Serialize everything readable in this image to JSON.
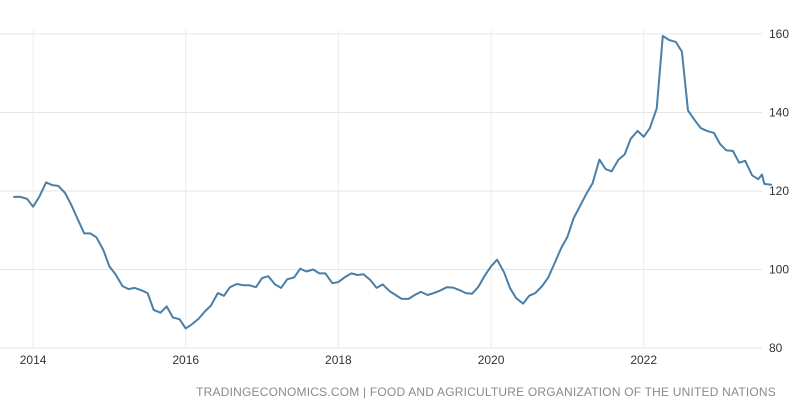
{
  "source_label": "TRADINGECONOMICS.COM | FOOD AND AGRICULTURE ORGANIZATION OF THE UNITED NATIONS",
  "chart_data": {
    "type": "line",
    "title": "",
    "xlabel": "",
    "ylabel": "",
    "xlim": [
      2013.75,
      2023.55
    ],
    "ylim": [
      80,
      160
    ],
    "x_ticks": [
      {
        "value": 2014,
        "label": "2014"
      },
      {
        "value": 2016,
        "label": "2016"
      },
      {
        "value": 2018,
        "label": "2018"
      },
      {
        "value": 2020,
        "label": "2020"
      },
      {
        "value": 2022,
        "label": "2022"
      }
    ],
    "y_ticks": [
      {
        "value": 80,
        "label": "80"
      },
      {
        "value": 100,
        "label": "100"
      },
      {
        "value": 120,
        "label": "120"
      },
      {
        "value": 140,
        "label": "140"
      },
      {
        "value": 160,
        "label": "160"
      }
    ],
    "grid": true,
    "y_axis_side": "right",
    "line_color": "#4a7fa8",
    "series": [
      {
        "points": [
          [
            2013.75,
            118.5
          ],
          [
            2013.83,
            118.5
          ],
          [
            2013.92,
            118.0
          ],
          [
            2014.0,
            116.0
          ],
          [
            2014.08,
            118.5
          ],
          [
            2014.17,
            122.2
          ],
          [
            2014.25,
            121.5
          ],
          [
            2014.33,
            121.3
          ],
          [
            2014.42,
            119.5
          ],
          [
            2014.5,
            116.5
          ],
          [
            2014.58,
            113.0
          ],
          [
            2014.67,
            109.2
          ],
          [
            2014.75,
            109.2
          ],
          [
            2014.83,
            108.2
          ],
          [
            2014.92,
            105.0
          ],
          [
            2015.0,
            100.8
          ],
          [
            2015.08,
            98.8
          ],
          [
            2015.17,
            95.8
          ],
          [
            2015.25,
            95.0
          ],
          [
            2015.33,
            95.3
          ],
          [
            2015.42,
            94.7
          ],
          [
            2015.5,
            94.0
          ],
          [
            2015.58,
            89.7
          ],
          [
            2015.67,
            89.0
          ],
          [
            2015.75,
            90.6
          ],
          [
            2015.83,
            87.8
          ],
          [
            2015.92,
            87.3
          ],
          [
            2016.0,
            85.0
          ],
          [
            2016.08,
            86.0
          ],
          [
            2016.17,
            87.5
          ],
          [
            2016.25,
            89.3
          ],
          [
            2016.33,
            90.8
          ],
          [
            2016.42,
            94.0
          ],
          [
            2016.5,
            93.3
          ],
          [
            2016.58,
            95.5
          ],
          [
            2016.67,
            96.3
          ],
          [
            2016.75,
            96.0
          ],
          [
            2016.83,
            96.0
          ],
          [
            2016.92,
            95.5
          ],
          [
            2017.0,
            97.8
          ],
          [
            2017.08,
            98.3
          ],
          [
            2017.17,
            96.2
          ],
          [
            2017.25,
            95.3
          ],
          [
            2017.33,
            97.5
          ],
          [
            2017.42,
            98.0
          ],
          [
            2017.5,
            100.2
          ],
          [
            2017.58,
            99.5
          ],
          [
            2017.67,
            100.0
          ],
          [
            2017.75,
            99.0
          ],
          [
            2017.83,
            99.0
          ],
          [
            2017.92,
            96.5
          ],
          [
            2018.0,
            96.8
          ],
          [
            2018.08,
            98.0
          ],
          [
            2018.17,
            99.0
          ],
          [
            2018.25,
            98.6
          ],
          [
            2018.33,
            98.8
          ],
          [
            2018.42,
            97.3
          ],
          [
            2018.5,
            95.3
          ],
          [
            2018.58,
            96.2
          ],
          [
            2018.67,
            94.5
          ],
          [
            2018.75,
            93.5
          ],
          [
            2018.83,
            92.5
          ],
          [
            2018.92,
            92.5
          ],
          [
            2019.0,
            93.5
          ],
          [
            2019.08,
            94.3
          ],
          [
            2019.17,
            93.5
          ],
          [
            2019.25,
            94.0
          ],
          [
            2019.33,
            94.6
          ],
          [
            2019.42,
            95.5
          ],
          [
            2019.5,
            95.4
          ],
          [
            2019.58,
            94.8
          ],
          [
            2019.67,
            94.0
          ],
          [
            2019.75,
            93.8
          ],
          [
            2019.83,
            95.5
          ],
          [
            2019.92,
            98.5
          ],
          [
            2020.0,
            100.8
          ],
          [
            2020.08,
            102.5
          ],
          [
            2020.17,
            99.3
          ],
          [
            2020.25,
            95.2
          ],
          [
            2020.33,
            92.7
          ],
          [
            2020.42,
            91.3
          ],
          [
            2020.5,
            93.3
          ],
          [
            2020.58,
            94.0
          ],
          [
            2020.67,
            95.8
          ],
          [
            2020.75,
            98.0
          ],
          [
            2020.83,
            101.5
          ],
          [
            2020.92,
            105.5
          ],
          [
            2021.0,
            108.3
          ],
          [
            2021.08,
            113.0
          ],
          [
            2021.17,
            116.3
          ],
          [
            2021.25,
            119.3
          ],
          [
            2021.33,
            122.0
          ],
          [
            2021.42,
            128.0
          ],
          [
            2021.5,
            125.6
          ],
          [
            2021.58,
            125.0
          ],
          [
            2021.67,
            128.0
          ],
          [
            2021.75,
            129.3
          ],
          [
            2021.83,
            133.3
          ],
          [
            2021.92,
            135.3
          ],
          [
            2022.0,
            133.8
          ],
          [
            2022.08,
            136.0
          ],
          [
            2022.17,
            141.0
          ],
          [
            2022.25,
            159.5
          ],
          [
            2022.33,
            158.5
          ],
          [
            2022.42,
            158.0
          ],
          [
            2022.5,
            155.5
          ],
          [
            2022.58,
            140.5
          ],
          [
            2022.67,
            138.0
          ],
          [
            2022.75,
            136.0
          ],
          [
            2022.83,
            135.3
          ],
          [
            2022.92,
            134.8
          ],
          [
            2023.0,
            132.0
          ],
          [
            2023.08,
            130.4
          ],
          [
            2023.17,
            130.2
          ],
          [
            2023.25,
            127.2
          ],
          [
            2023.33,
            127.7
          ],
          [
            2023.42,
            124.0
          ],
          [
            2023.5,
            123.0
          ],
          [
            2023.55,
            124.2
          ],
          [
            2023.58,
            121.8
          ],
          [
            2023.67,
            121.6
          ]
        ]
      }
    ]
  }
}
